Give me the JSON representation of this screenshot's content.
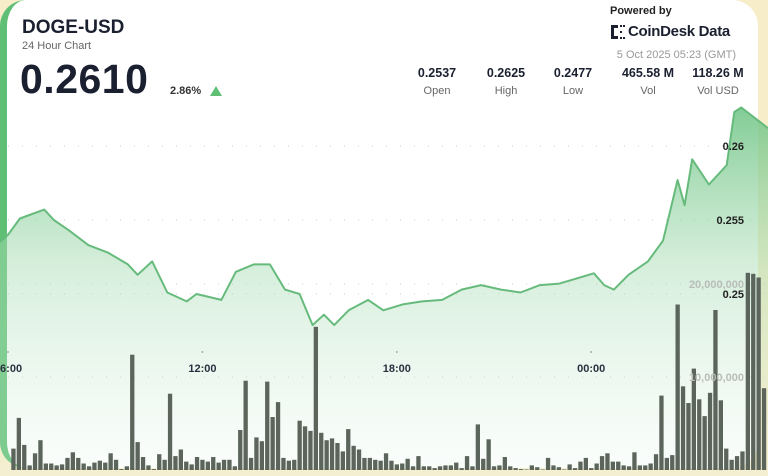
{
  "header": {
    "symbol": "DOGE-USD",
    "subtitle": "24 Hour Chart",
    "price": "0.2610",
    "change": "2.86%",
    "change_direction": "up",
    "powered_by": "Powered by",
    "brand": "CoinDesk Data",
    "timestamp": "5 Oct 2025 05:23 (GMT)"
  },
  "stats": [
    {
      "value": "0.2537",
      "label": "Open"
    },
    {
      "value": "0.2625",
      "label": "High"
    },
    {
      "value": "0.2477",
      "label": "Low"
    },
    {
      "value": "465.58 M",
      "label": "Vol"
    },
    {
      "value": "118.26 M",
      "label": "Vol USD"
    }
  ],
  "colors": {
    "accent": "#5fbf74",
    "line": "#66bb7c",
    "bars": "#5b655b",
    "frame": "#f7edc9"
  },
  "chart_data": {
    "type": "area",
    "grid": true,
    "x_ticks": [
      "06:00",
      "12:00",
      "18:00",
      "00:00"
    ],
    "price": {
      "y_ticks": [
        "0.26",
        "0.255",
        "0.25"
      ],
      "y_tick_values": [
        0.26,
        0.255,
        0.25
      ],
      "points": [
        [
          "05:45",
          0.2535
        ],
        [
          "06:00",
          0.254
        ],
        [
          "06:22",
          0.2551
        ],
        [
          "07:07",
          0.2557
        ],
        [
          "07:25",
          0.255
        ],
        [
          "07:53",
          0.2543
        ],
        [
          "08:29",
          0.2533
        ],
        [
          "09:05",
          0.2528
        ],
        [
          "09:42",
          0.252
        ],
        [
          "10:00",
          0.2513
        ],
        [
          "10:27",
          0.2522
        ],
        [
          "10:55",
          0.2501
        ],
        [
          "11:31",
          0.2495
        ],
        [
          "11:49",
          0.25
        ],
        [
          "12:35",
          0.2496
        ],
        [
          "13:02",
          0.2515
        ],
        [
          "13:35",
          0.252
        ],
        [
          "14:05",
          0.252
        ],
        [
          "14:33",
          0.2503
        ],
        [
          "15:00",
          0.25
        ],
        [
          "15:24",
          0.2479
        ],
        [
          "15:45",
          0.2486
        ],
        [
          "16:04",
          0.2479
        ],
        [
          "16:31",
          0.2489
        ],
        [
          "17:07",
          0.2496
        ],
        [
          "17:35",
          0.2489
        ],
        [
          "18:11",
          0.2493
        ],
        [
          "18:47",
          0.2495
        ],
        [
          "19:24",
          0.2496
        ],
        [
          "20:00",
          0.2503
        ],
        [
          "20:36",
          0.2506
        ],
        [
          "21:13",
          0.2503
        ],
        [
          "21:49",
          0.2501
        ],
        [
          "22:25",
          0.2506
        ],
        [
          "23:01",
          0.2507
        ],
        [
          "23:38",
          0.2511
        ],
        [
          "00:05",
          0.2514
        ],
        [
          "00:24",
          0.2506
        ],
        [
          "00:42",
          0.2503
        ],
        [
          "01:09",
          0.2513
        ],
        [
          "01:45",
          0.2522
        ],
        [
          "02:13",
          0.2536
        ],
        [
          "02:40",
          0.2577
        ],
        [
          "02:53",
          0.256
        ],
        [
          "03:07",
          0.2591
        ],
        [
          "03:38",
          0.2574
        ],
        [
          "04:11",
          0.2587
        ],
        [
          "04:25",
          0.2623
        ],
        [
          "04:38",
          0.2626
        ],
        [
          "05:02",
          0.2612
        ]
      ]
    },
    "volume": {
      "type": "bar",
      "y_ticks": [
        "20,000,000",
        "10,000,000"
      ],
      "y_tick_values": [
        20000000,
        10000000
      ],
      "start": "06:10",
      "interval_minutes": 10,
      "values": [
        2300000,
        5600000,
        2700000,
        500000,
        1800000,
        3200000,
        700000,
        700000,
        500000,
        600000,
        1300000,
        1900000,
        1300000,
        700000,
        400000,
        800000,
        1000000,
        800000,
        1800000,
        1100000,
        100000,
        400000,
        12400000,
        3000000,
        1400000,
        500000,
        100000,
        1700000,
        1100000,
        8200000,
        1500000,
        2200000,
        900000,
        600000,
        1400000,
        1100000,
        900000,
        1400000,
        800000,
        1100000,
        1100000,
        400000,
        4300000,
        9600000,
        1300000,
        3500000,
        3100000,
        9500000,
        5700000,
        7300000,
        1300000,
        1000000,
        1100000,
        5300000,
        4700000,
        4200000,
        15400000,
        4000000,
        3200000,
        3400000,
        2900000,
        2000000,
        4400000,
        2600000,
        2200000,
        1300000,
        1300000,
        1100000,
        1000000,
        1800000,
        1000000,
        600000,
        700000,
        1200000,
        400000,
        1500000,
        400000,
        400000,
        200000,
        400000,
        500000,
        500000,
        800000,
        200000,
        1500000,
        400000,
        4900000,
        1200000,
        3300000,
        400000,
        500000,
        1400000,
        400000,
        200000,
        100000,
        50000,
        500000,
        300000,
        50000,
        1300000,
        500000,
        300000,
        50000,
        600000,
        200000,
        900000,
        1300000,
        200000,
        700000,
        1500000,
        1800000,
        900000,
        900000,
        500000,
        400000,
        1900000,
        500000,
        500000,
        700000,
        1700000,
        8000000,
        1300000,
        1600000,
        17800000,
        9000000,
        7200000,
        10900000,
        7600000,
        5800000,
        8300000,
        17200000,
        7500000,
        2300000,
        1100000,
        1500000,
        2000000,
        21200000,
        21100000,
        20700000,
        8800000
      ]
    }
  }
}
